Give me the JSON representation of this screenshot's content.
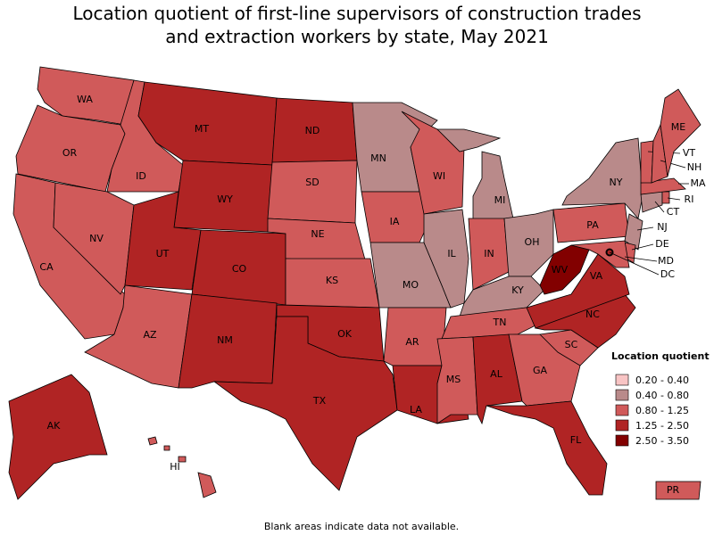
{
  "title": "Location quotient of first-line supervisors of construction trades\nand extraction workers by state, May 2021",
  "legend": {
    "title": "Location quotient",
    "bins": [
      {
        "label": "0.20 - 0.40",
        "color": "#f8c4c4"
      },
      {
        "label": "0.40 - 0.80",
        "color": "#b98a8a"
      },
      {
        "label": "0.80 - 1.25",
        "color": "#d05a5a"
      },
      {
        "label": "1.25 - 2.50",
        "color": "#b02424"
      },
      {
        "label": "2.50 - 3.50",
        "color": "#820000"
      }
    ]
  },
  "states": [
    {
      "abbr": "WA",
      "color": "#d05a5a"
    },
    {
      "abbr": "OR",
      "color": "#d05a5a"
    },
    {
      "abbr": "CA",
      "color": "#d05a5a"
    },
    {
      "abbr": "NV",
      "color": "#d05a5a"
    },
    {
      "abbr": "ID",
      "color": "#d05a5a"
    },
    {
      "abbr": "MT",
      "color": "#b02424"
    },
    {
      "abbr": "WY",
      "color": "#b02424"
    },
    {
      "abbr": "UT",
      "color": "#b02424"
    },
    {
      "abbr": "CO",
      "color": "#b02424"
    },
    {
      "abbr": "AZ",
      "color": "#d05a5a"
    },
    {
      "abbr": "NM",
      "color": "#b02424"
    },
    {
      "abbr": "ND",
      "color": "#b02424"
    },
    {
      "abbr": "SD",
      "color": "#d05a5a"
    },
    {
      "abbr": "NE",
      "color": "#d05a5a"
    },
    {
      "abbr": "KS",
      "color": "#d05a5a"
    },
    {
      "abbr": "OK",
      "color": "#b02424"
    },
    {
      "abbr": "TX",
      "color": "#b02424"
    },
    {
      "abbr": "MN",
      "color": "#b98a8a"
    },
    {
      "abbr": "IA",
      "color": "#d05a5a"
    },
    {
      "abbr": "MO",
      "color": "#b98a8a"
    },
    {
      "abbr": "AR",
      "color": "#d05a5a"
    },
    {
      "abbr": "LA",
      "color": "#b02424"
    },
    {
      "abbr": "WI",
      "color": "#d05a5a"
    },
    {
      "abbr": "IL",
      "color": "#b98a8a"
    },
    {
      "abbr": "MI",
      "color": "#b98a8a"
    },
    {
      "abbr": "IN",
      "color": "#d05a5a"
    },
    {
      "abbr": "OH",
      "color": "#b98a8a"
    },
    {
      "abbr": "KY",
      "color": "#b98a8a"
    },
    {
      "abbr": "TN",
      "color": "#d05a5a"
    },
    {
      "abbr": "MS",
      "color": "#d05a5a"
    },
    {
      "abbr": "AL",
      "color": "#b02424"
    },
    {
      "abbr": "GA",
      "color": "#d05a5a"
    },
    {
      "abbr": "FL",
      "color": "#b02424"
    },
    {
      "abbr": "SC",
      "color": "#d05a5a"
    },
    {
      "abbr": "NC",
      "color": "#b02424"
    },
    {
      "abbr": "VA",
      "color": "#b02424"
    },
    {
      "abbr": "WV",
      "color": "#820000"
    },
    {
      "abbr": "PA",
      "color": "#d05a5a"
    },
    {
      "abbr": "NY",
      "color": "#b98a8a"
    },
    {
      "abbr": "NJ",
      "color": "#b98a8a"
    },
    {
      "abbr": "DE",
      "color": "#d05a5a"
    },
    {
      "abbr": "MD",
      "color": "#d05a5a"
    },
    {
      "abbr": "CT",
      "color": "#b98a8a"
    },
    {
      "abbr": "RI",
      "color": "#d05a5a"
    },
    {
      "abbr": "MA",
      "color": "#d05a5a"
    },
    {
      "abbr": "VT",
      "color": "#d05a5a"
    },
    {
      "abbr": "NH",
      "color": "#d05a5a"
    },
    {
      "abbr": "ME",
      "color": "#d05a5a"
    },
    {
      "abbr": "DC",
      "color": "#b02424"
    },
    {
      "abbr": "AK",
      "color": "#b02424"
    },
    {
      "abbr": "HI",
      "color": "#d05a5a"
    },
    {
      "abbr": "PR",
      "color": "#d05a5a"
    }
  ],
  "footnote": "Blank areas indicate data not available."
}
